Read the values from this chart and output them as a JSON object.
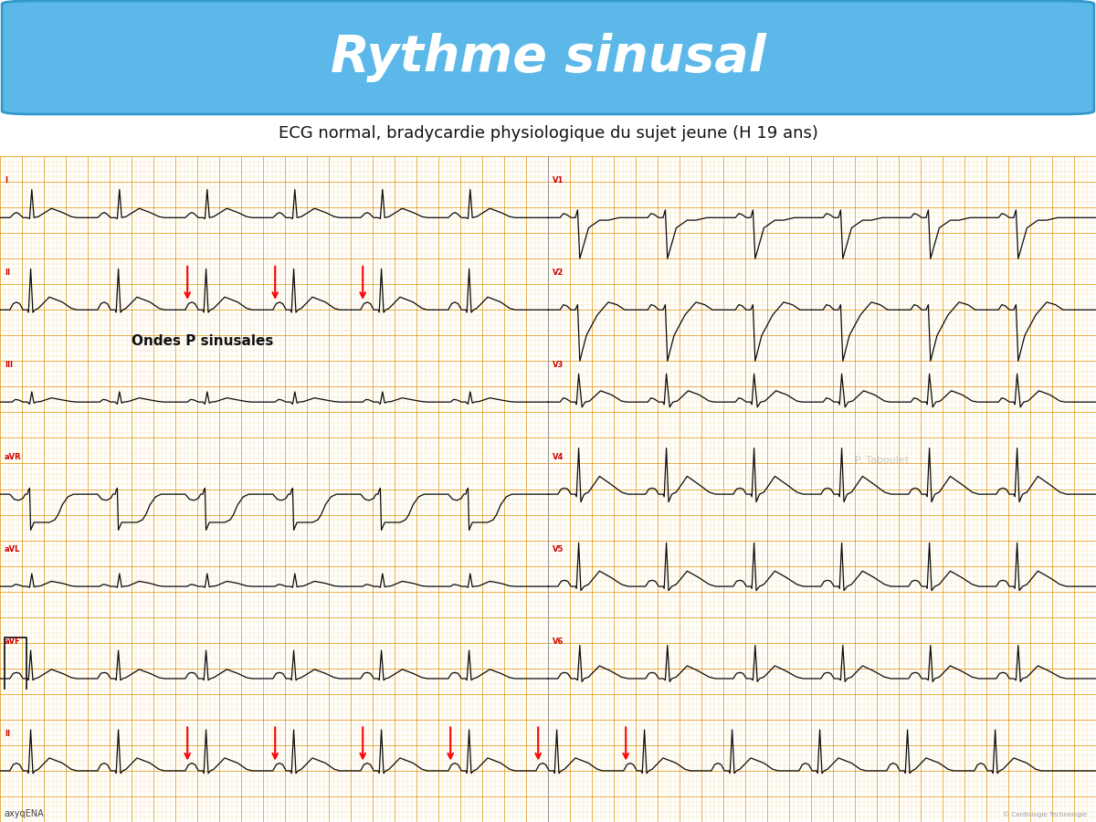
{
  "title": "Rythme sinusal",
  "subtitle": "ECG normal, bradycardie physiologique du sujet jeune (H 19 ans)",
  "title_bg": "#5bb8e8",
  "title_color": "#ffffff",
  "subtitle_color": "#111111",
  "ecg_bg": "#fdf5d8",
  "grid_major_color": "#e09000",
  "grid_minor_color": "#f0d080",
  "ecg_line_color": "#0a0a0a",
  "annotation_color": "#cc0000",
  "watermark": "P. Taboulet",
  "copyright": "© Cardiologie Technologie",
  "branding": "axyqENA",
  "ondes_p_text": "Ondes P sinusales",
  "page_bg": "#ffffff",
  "beat_period": 0.8,
  "ecg_speed": 25.0
}
